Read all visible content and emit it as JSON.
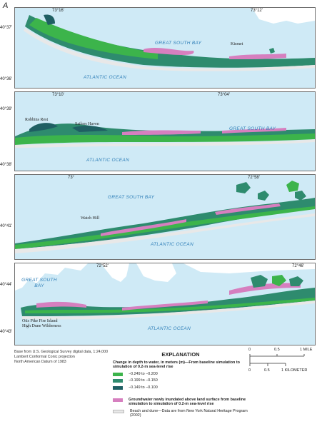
{
  "panel_label": "A",
  "panels": [
    {
      "top_ticks": [
        "73°16'",
        "73°12'"
      ],
      "left_ticks": [
        "40°37'",
        "40°36'"
      ],
      "water_labels": [
        "GREAT SOUTH BAY",
        "ATLANTIC OCEAN"
      ],
      "places": [
        "Kismet"
      ]
    },
    {
      "top_ticks": [
        "73°10'",
        "73°04'"
      ],
      "left_ticks": [
        "40°39'",
        "40°38'"
      ],
      "water_labels": [
        "GREAT SOUTH BAY",
        "ATLANTIC OCEAN"
      ],
      "places": [
        "Robbins Rest",
        "Sailors Haven"
      ]
    },
    {
      "top_ticks": [
        "73°",
        "72°58'"
      ],
      "left_ticks": [
        "40°41'"
      ],
      "water_labels": [
        "GREAT SOUTH BAY",
        "ATLANTIC OCEAN"
      ],
      "places": [
        "Watch Hill"
      ]
    },
    {
      "top_ticks": [
        "72°52'",
        "72°46'"
      ],
      "left_ticks": [
        "40°44'",
        "40°43'"
      ],
      "water_labels": [
        "GREAT SOUTH BAY",
        "ATLANTIC OCEAN"
      ],
      "places": [
        "Otis Pike Fire Island",
        "High Dune Wilderness"
      ]
    }
  ],
  "credit": [
    "Base from U.S. Geological Survey digital data, 1:24,000",
    "Lambert Conformal Conic projection",
    "North American Datum of 1983"
  ],
  "legend": {
    "title": "EXPLANATION",
    "heading": "Change in depth to water, in meters (m)—From baseline simulation to simulation of 0.2-m sea-level rise",
    "classes": [
      {
        "label": "−0.249 to −0.200",
        "color": "#3cb44b"
      },
      {
        "label": "−0.199 to −0.150",
        "color": "#2e8b6e"
      },
      {
        "label": "−0.149 to −0.100",
        "color": "#1f5f63"
      }
    ],
    "inundated": {
      "label": "Groundwater newly inundated above land surface from baseline simulation to simulation of 0.2-m sea-level rise",
      "color": "#d67fbf"
    },
    "beach": {
      "label": "Beach and dune—Data are from New York Natural Heritage Program (2002)",
      "color": "#e8e8e8"
    }
  },
  "scale": {
    "miles": [
      "0",
      "0.5",
      "1 MILE"
    ],
    "km": [
      "0",
      "0.5",
      "1 KILOMETER"
    ]
  },
  "colors": {
    "water": "#cfeaf6",
    "land": "#ffffff",
    "water_text": "#2f7fb8"
  }
}
